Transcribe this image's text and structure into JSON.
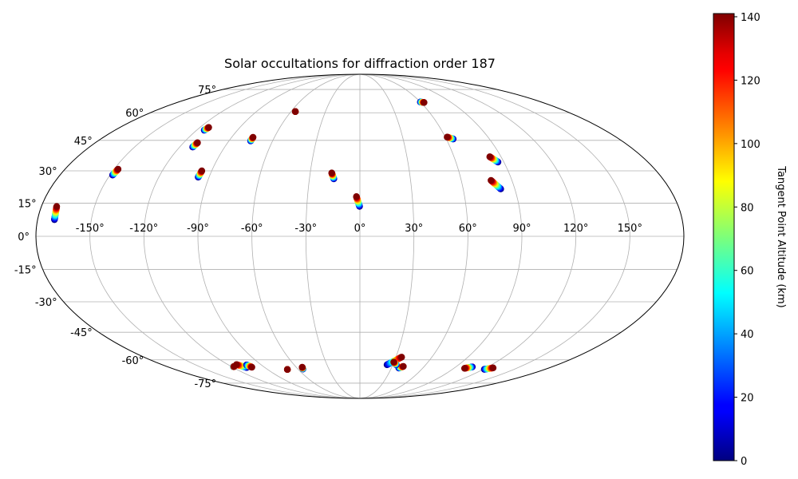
{
  "chart_data": {
    "type": "scatter",
    "projection": "mollweide",
    "title": "Solar occultations for diffraction order 187",
    "xlabel": "",
    "ylabel": "",
    "grid": true,
    "longitude_ticks": [
      -150,
      -120,
      -90,
      -60,
      -30,
      0,
      30,
      60,
      90,
      120,
      150
    ],
    "longitude_tick_labels": [
      "-150°",
      "-120°",
      "-90°",
      "-60°",
      "-30°",
      "0°",
      "30°",
      "60°",
      "90°",
      "120°",
      "150°"
    ],
    "latitude_ticks": [
      -75,
      -60,
      -45,
      -30,
      -15,
      0,
      15,
      30,
      45,
      60,
      75
    ],
    "latitude_tick_labels": [
      "-75°",
      "-60°",
      "-45°",
      "-30°",
      "-15°",
      "0°",
      "15°",
      "30°",
      "45°",
      "60°",
      "75°"
    ],
    "colorbar": {
      "label": "Tangent Point Altitude (km)",
      "colormap": "jet",
      "range": [
        0,
        141
      ],
      "ticks": [
        0,
        20,
        40,
        60,
        80,
        100,
        120,
        140
      ],
      "tick_labels": [
        "0",
        "20",
        "40",
        "60",
        "80",
        "100",
        "120",
        "140"
      ]
    },
    "occultations": [
      {
        "lon_bottom": -170.6,
        "lat_bottom": 7.5,
        "lon_top": -171.4,
        "lat_top": 13.5
      },
      {
        "lon_bottom": -148.4,
        "lat_bottom": 28.0,
        "lon_top": -147.6,
        "lat_top": 30.8
      },
      {
        "lon_bottom": -111.3,
        "lat_bottom": 41.6,
        "lon_top": -110.5,
        "lat_top": 43.8
      },
      {
        "lon_bottom": -114.4,
        "lat_bottom": 50.3,
        "lon_top": -113.4,
        "lat_top": 51.8
      },
      {
        "lon_bottom": -96.5,
        "lat_bottom": 27.0,
        "lon_top": -96.0,
        "lat_top": 30.0
      },
      {
        "lon_bottom": -75.1,
        "lat_bottom": 44.7,
        "lon_top": -75.0,
        "lat_top": 46.6
      },
      {
        "lon_bottom": -56.2,
        "lat_bottom": 60.7,
        "lon_top": -56.2,
        "lat_top": 60.7
      },
      {
        "lon_bottom": -15.5,
        "lat_bottom": 26.2,
        "lon_top": -17.0,
        "lat_top": 29.0
      },
      {
        "lon_bottom": -0.2,
        "lat_bottom": 13.5,
        "lon_top": -2.0,
        "lat_top": 18.0
      },
      {
        "lon_bottom": 60.0,
        "lat_bottom": 66.5,
        "lon_top": 63.2,
        "lat_top": 66.2
      },
      {
        "lon_bottom": 64.8,
        "lat_bottom": 45.7,
        "lon_top": 61.3,
        "lat_top": 46.7
      },
      {
        "lon_bottom": 86.3,
        "lat_bottom": 34.2,
        "lon_top": 82.8,
        "lat_top": 36.8
      },
      {
        "lon_bottom": 81.8,
        "lat_bottom": 21.5,
        "lon_top": 77.6,
        "lat_top": 25.5
      },
      {
        "lon_bottom": -118.4,
        "lat_bottom": -64.1,
        "lon_top": -117.5,
        "lat_top": -64.0
      },
      {
        "lon_bottom": -107.2,
        "lat_bottom": -64.6,
        "lon_top": -112.3,
        "lat_top": -62.8
      },
      {
        "lon_bottom": -103.5,
        "lat_bottom": -63.0,
        "lon_top": -101.8,
        "lat_top": -64.4
      },
      {
        "lon_bottom": -70.7,
        "lat_bottom": -65.8,
        "lon_top": -70.7,
        "lat_top": -65.8
      },
      {
        "lon_bottom": -55.1,
        "lat_bottom": -65.5,
        "lon_top": -54.4,
        "lat_top": -64.4
      },
      {
        "lon_bottom": 24.7,
        "lat_bottom": -62.9,
        "lon_top": 34.8,
        "lat_top": -58.4
      },
      {
        "lon_bottom": 37.1,
        "lat_bottom": -64.9,
        "lon_top": 40.5,
        "lat_top": -63.9
      },
      {
        "lon_bottom": 33.1,
        "lat_bottom": -62.9,
        "lon_top": 29.8,
        "lat_top": -61.3
      },
      {
        "lon_bottom": 105.5,
        "lat_bottom": -64.2,
        "lon_top": 100.3,
        "lat_top": -65.1
      },
      {
        "lon_bottom": 121.0,
        "lat_bottom": -65.7,
        "lon_top": 126.8,
        "lat_top": -64.8
      }
    ]
  }
}
